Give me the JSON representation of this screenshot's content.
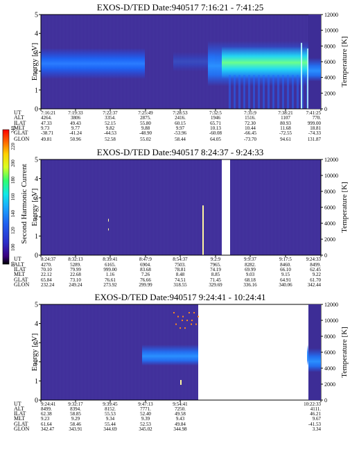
{
  "chart_data": [
    {
      "type": "heatmap",
      "title": "EXOS-D/TED   Date:940517   7:16:21 - 7:41:25",
      "ylabel": "Energy [eV]",
      "ylabel_right": "Temperature [K]",
      "ylim": [
        0,
        5
      ],
      "yticks": [
        "0",
        "1",
        "2",
        "3",
        "4",
        "5"
      ],
      "ylim_right": [
        0,
        12000
      ],
      "yticks_right": [
        "0",
        "2000",
        "4000",
        "6000",
        "8000",
        "10000",
        "12000"
      ],
      "columns": [
        {
          "UT": "7:16:21",
          "ALT": "4264.",
          "ILAT": "47.33",
          "MLT": "9.73",
          "GLAT": "-38.71",
          "GLON": "49.81"
        },
        {
          "UT": "7:19:33",
          "ALT": "3806",
          "ILAT": "49.43",
          "MLT": "9.77",
          "GLAT": "-41.24",
          "GLON": "50.96"
        },
        {
          "UT": "7:22:37",
          "ALT": "3354.",
          "ILAT": "52.15",
          "MLT": "9.82",
          "GLAT": "-44.53",
          "GLON": "52.58"
        },
        {
          "UT": "7:25:49",
          "ALT": "2875.",
          "ILAT": "55.80",
          "MLT": "9.88",
          "GLAT": "-48.90",
          "GLON": "55.02"
        },
        {
          "UT": "7:28:53",
          "ALT": "2416.",
          "ILAT": "60.15",
          "MLT": "9.97",
          "GLAT": "-53.96",
          "GLON": "58.44"
        },
        {
          "UT": "7:32:5",
          "ALT": "1946",
          "ILAT": "65.71",
          "MLT": "10.13",
          "GLAT": "-60.08",
          "GLON": "64.05"
        },
        {
          "UT": "7:35:9",
          "ALT": "1516.",
          "ILAT": "72.30",
          "MLT": "10.44",
          "GLAT": "-66.45",
          "GLON": "-73.70"
        },
        {
          "UT": "7:38:21",
          "ALT": "1107",
          "ILAT": "80.93",
          "MLT": "11.68",
          "GLAT": "-72.55",
          "GLON": "94.61"
        },
        {
          "UT": "7:41:25",
          "ALT": "770.",
          "ILAT": "999.00",
          "MLT": "18.81",
          "GLAT": "-74.33",
          "GLON": "131.87"
        }
      ]
    },
    {
      "type": "heatmap",
      "title": "EXOS-D/TED   Date:940517   8:24:37 - 9:24:33",
      "ylabel": "Energy [eV]",
      "ylabel_right": "Temperature [K]",
      "ylim": [
        0,
        5
      ],
      "yticks": [
        "0",
        "1",
        "2",
        "3",
        "4",
        "5"
      ],
      "ylim_right": [
        0,
        12000
      ],
      "yticks_right": [
        "0",
        "2000",
        "4000",
        "6000",
        "8000",
        "10000",
        "12000"
      ],
      "columns": [
        {
          "UT": "8:24:37",
          "ALT": "4270.",
          "ILAT": "70.10",
          "MLT": "22.12",
          "GLAT": "65.84",
          "GLON": "232.24"
        },
        {
          "UT": "8:32:13",
          "ALT": "5289.",
          "ILAT": "79.99",
          "MLT": "22.68",
          "GLAT": "73.10",
          "GLON": "249.24"
        },
        {
          "UT": "8:39:41",
          "ALT": "6165.",
          "ILAT": "999.00",
          "MLT": "1.16",
          "GLAT": "76.61",
          "GLON": "273.92"
        },
        {
          "UT": "8:47:9",
          "ALT": "6904.",
          "ILAT": "83.68",
          "MLT": "7.26",
          "GLAT": "76.66",
          "GLON": "299.99"
        },
        {
          "UT": "8:54:37",
          "ALT": "7503.",
          "ILAT": "78.81",
          "MLT": "8.48",
          "GLAT": "74.51",
          "GLON": "318.55"
        },
        {
          "UT": "9:2:9",
          "ALT": "7965.",
          "ILAT": "74.19",
          "MLT": "8.85",
          "GLAT": "71.45",
          "GLON": "329.69"
        },
        {
          "UT": "9:9:37",
          "ALT": "8282.",
          "ILAT": "69.99",
          "MLT": "9.03",
          "GLAT": "68.18",
          "GLON": "336.16"
        },
        {
          "UT": "9:17:5",
          "ALT": "8460.",
          "ILAT": "66.10",
          "MLT": "9.15",
          "GLAT": "64.91",
          "GLON": "340.06"
        },
        {
          "UT": "9:24:33",
          "ALT": "8499.",
          "ILAT": "62.45",
          "MLT": "9.22",
          "GLAT": "61.70",
          "GLON": "342.44"
        }
      ]
    },
    {
      "type": "heatmap",
      "title": "EXOS-D/TED   Date:940517   9:24:41 - 10:24:41",
      "ylabel": "Energy [eV]",
      "ylabel_right": "Temperature [K]",
      "ylim": [
        0,
        5
      ],
      "yticks": [
        "0",
        "1",
        "2",
        "3",
        "4",
        "5"
      ],
      "ylim_right": [
        0,
        12000
      ],
      "yticks_right": [
        "0",
        "2000",
        "4000",
        "6000",
        "8000",
        "10000",
        "12000"
      ],
      "columns": [
        {
          "UT": "9:24:41",
          "ALT": "8499.",
          "ILAT": "62.38",
          "MLT": "9.23",
          "GLAT": "61.64",
          "GLON": "342.47"
        },
        {
          "UT": "9:32:17",
          "ALT": "8394.",
          "ILAT": "58.85",
          "MLT": "9.29",
          "GLAT": "58.46",
          "GLON": "343.91"
        },
        {
          "UT": "9:39:45",
          "ALT": "8152.",
          "ILAT": "55.53",
          "MLT": "9.34",
          "GLAT": "55.44",
          "GLON": "344.69"
        },
        {
          "UT": "9:47:13",
          "ALT": "7771.",
          "ILAT": "52.40",
          "MLT": "9.39",
          "GLAT": "52.53",
          "GLON": "345.02"
        },
        {
          "UT": "9:54:41",
          "ALT": "7250.",
          "ILAT": "49.58",
          "MLT": "9.43",
          "GLAT": "49.84",
          "GLON": "344.98"
        },
        {
          "UT": "10:22:33",
          "ALT": "4111.",
          "ILAT": "46.21",
          "MLT": "9.67",
          "GLAT": "-41.53",
          "GLON": "3.34"
        }
      ]
    }
  ],
  "row_labels": [
    "UT",
    "ALT",
    "ILAT",
    "MLT",
    "GLAT",
    "GLON"
  ],
  "colorbar": {
    "label": "Second Harmonic Current",
    "range": [
      80,
      240
    ],
    "ticks": [
      "80",
      "100",
      "120",
      "140",
      "160",
      "180",
      "200",
      "220",
      "240"
    ]
  }
}
